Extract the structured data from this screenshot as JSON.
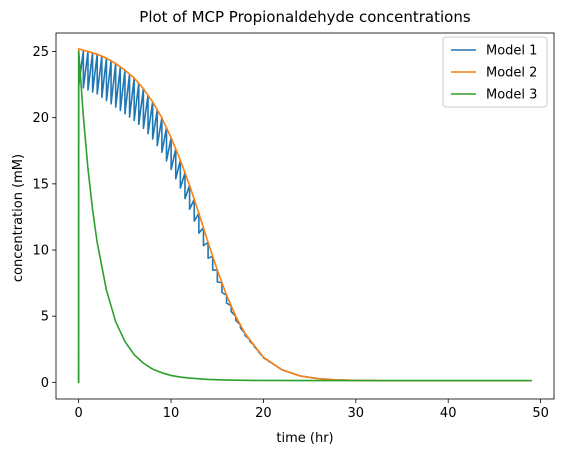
{
  "chart_data": {
    "type": "line",
    "title": "Plot of MCP Propionaldehyde concentrations",
    "xlabel": "time (hr)",
    "ylabel": "concentration (mM)",
    "xlim": [
      -2.45,
      51.45
    ],
    "ylim": [
      -1.26,
      26.4
    ],
    "xticks": [
      0,
      10,
      20,
      30,
      40,
      50
    ],
    "yticks": [
      0,
      5,
      10,
      15,
      20,
      25
    ],
    "grid": false,
    "legend_position": "top-right",
    "series": [
      {
        "name": "Model 1",
        "color": "#1f77b4",
        "style": "sawtooth",
        "x": [
          0,
          0.01,
          1,
          2,
          3,
          4,
          5,
          6,
          7,
          8,
          9,
          10,
          11,
          12,
          13,
          14,
          15,
          16,
          17,
          18,
          20,
          22,
          24,
          26,
          28,
          30,
          33,
          36,
          40,
          45,
          49
        ],
        "y": [
          0,
          25.1,
          25.0,
          24.8,
          24.5,
          24.1,
          23.6,
          23.0,
          22.2,
          21.2,
          20.0,
          18.5,
          16.8,
          14.9,
          12.8,
          10.6,
          8.5,
          6.6,
          5.0,
          3.7,
          1.9,
          0.95,
          0.48,
          0.27,
          0.18,
          0.14,
          0.12,
          0.12,
          0.12,
          0.12,
          0.12
        ],
        "dip": [
          0,
          2.7,
          2.9,
          3.0,
          3.2,
          3.3,
          3.3,
          3.2,
          3.0,
          2.8,
          2.6,
          2.4,
          2.1,
          1.8,
          1.5,
          1.2,
          0.9,
          0.6,
          0.3,
          0.15,
          0.05,
          0,
          0,
          0,
          0,
          0,
          0,
          0,
          0,
          0,
          0
        ]
      },
      {
        "name": "Model 2",
        "color": "#ff7f0e",
        "x": [
          0,
          0.01,
          1,
          2,
          3,
          4,
          5,
          6,
          7,
          8,
          9,
          10,
          11,
          12,
          13,
          14,
          15,
          16,
          17,
          18,
          20,
          22,
          24,
          26,
          28,
          30,
          33,
          36,
          40,
          45,
          49
        ],
        "y": [
          0,
          25.2,
          25.0,
          24.8,
          24.5,
          24.1,
          23.6,
          23.0,
          22.2,
          21.2,
          20.0,
          18.5,
          16.8,
          14.9,
          12.8,
          10.6,
          8.5,
          6.6,
          5.0,
          3.7,
          1.9,
          0.95,
          0.48,
          0.27,
          0.18,
          0.14,
          0.12,
          0.12,
          0.12,
          0.12,
          0.12
        ]
      },
      {
        "name": "Model 3",
        "color": "#2ca02c",
        "x": [
          0,
          0.01,
          0.5,
          1,
          1.5,
          2,
          3,
          4,
          5,
          6,
          7,
          8,
          9,
          10,
          11,
          12,
          14,
          16,
          18,
          20,
          25,
          30,
          35,
          40,
          45,
          49
        ],
        "y": [
          0,
          25.0,
          20.2,
          16.2,
          13.1,
          10.6,
          7.0,
          4.6,
          3.1,
          2.1,
          1.45,
          1.0,
          0.72,
          0.52,
          0.4,
          0.32,
          0.22,
          0.17,
          0.15,
          0.14,
          0.13,
          0.13,
          0.13,
          0.13,
          0.13,
          0.13
        ]
      }
    ]
  }
}
